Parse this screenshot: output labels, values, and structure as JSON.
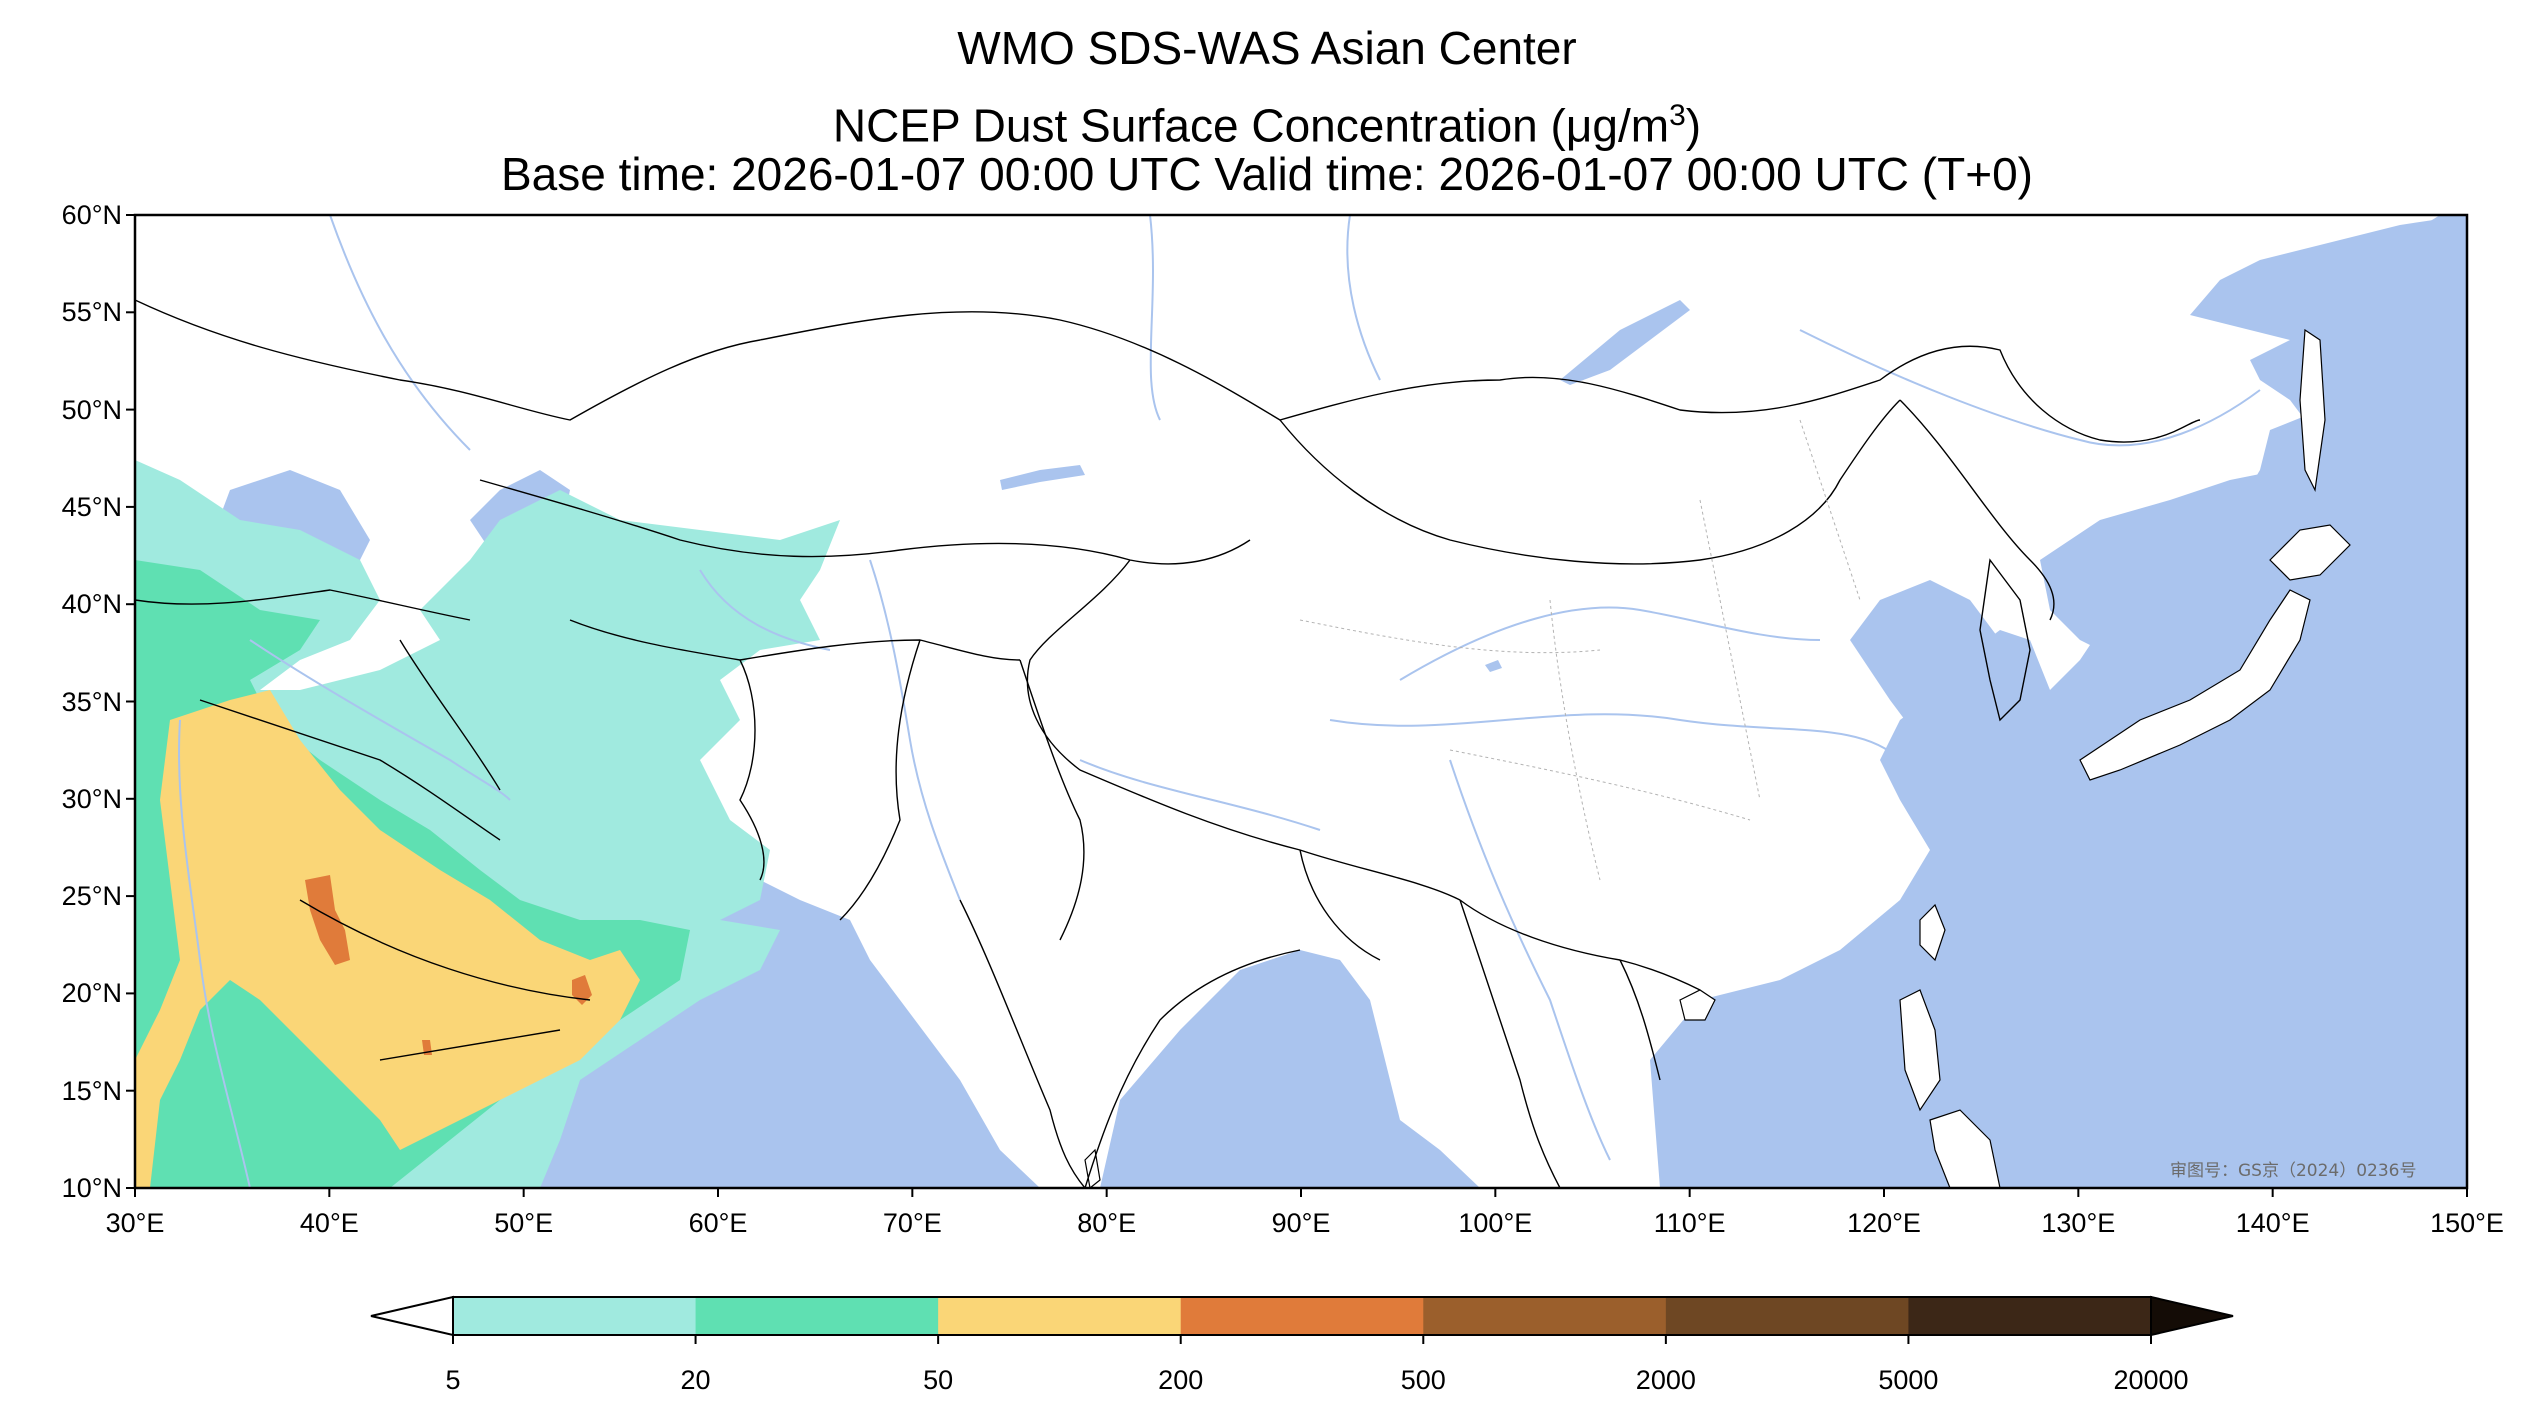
{
  "title": {
    "line1": "WMO SDS-WAS Asian Center",
    "line2_prefix": "NCEP Dust Surface Concentration (",
    "line2_mu": "μ",
    "line2_units": "g/m",
    "line2_sup": "3",
    "line2_suffix": ")",
    "line3": "Base time: 2026-01-07 00:00 UTC Valid time: 2026-01-07 00:00 UTC (T+0)"
  },
  "map": {
    "lon_range": [
      30,
      150
    ],
    "lat_range": [
      10,
      60
    ],
    "lat_ticks": [
      "10°N",
      "15°N",
      "20°N",
      "25°N",
      "30°N",
      "35°N",
      "40°N",
      "45°N",
      "50°N",
      "55°N",
      "60°N"
    ],
    "lon_ticks": [
      "30°E",
      "40°E",
      "50°E",
      "60°E",
      "70°E",
      "80°E",
      "90°E",
      "100°E",
      "110°E",
      "120°E",
      "130°E",
      "140°E",
      "150°E"
    ],
    "ocean_color": "#aac4ee",
    "land_color": "#ffffff",
    "border_color": "#000000",
    "river_color": "#aac4ee",
    "watermark": "审图号：GS京（2024）0236号"
  },
  "colorbar": {
    "levels": [
      "5",
      "20",
      "50",
      "200",
      "500",
      "2000",
      "5000",
      "20000"
    ],
    "colors": [
      "#a0eadf",
      "#5fe0b2",
      "#fad677",
      "#e07b3a",
      "#9b5f2c",
      "#6e4723",
      "#3c2717"
    ],
    "extend": "both"
  }
}
